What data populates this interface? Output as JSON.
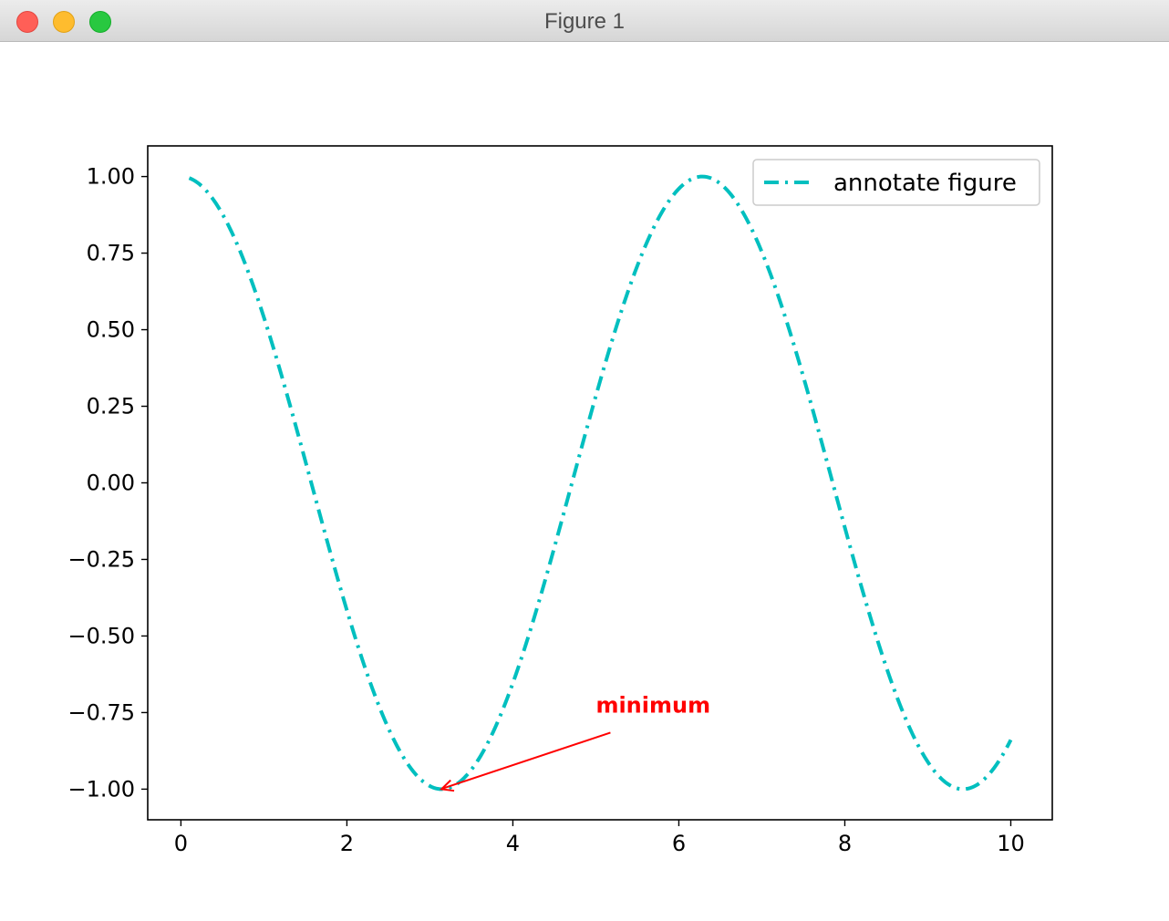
{
  "window": {
    "title": "Figure 1"
  },
  "chart_data": {
    "type": "line",
    "title": "",
    "xlabel": "",
    "ylabel": "",
    "xlim": [
      -0.4,
      10.5
    ],
    "ylim": [
      -1.1,
      1.1
    ],
    "xticks": [
      0,
      2,
      4,
      6,
      8,
      10
    ],
    "xtick_labels": [
      "0",
      "2",
      "4",
      "6",
      "8",
      "10"
    ],
    "yticks": [
      1.0,
      0.75,
      0.5,
      0.25,
      0.0,
      -0.25,
      -0.5,
      -0.75,
      -1.0
    ],
    "ytick_labels": [
      "1.00",
      "0.75",
      "0.50",
      "0.25",
      "0.00",
      "−0.25",
      "−0.50",
      "−0.75",
      "−1.00"
    ],
    "grid": false,
    "legend_position": "top-right",
    "series": [
      {
        "name": "annotate figure",
        "function": "cos(x)",
        "x_range": [
          0.1,
          10.0
        ],
        "color": "#00bfbf",
        "linestyle": "dashdot"
      }
    ],
    "annotations": [
      {
        "text": "minimum",
        "xy": [
          3.14,
          -1.0
        ],
        "xytext": [
          5.0,
          -0.75
        ],
        "color": "#ff0000",
        "fontweight": "bold"
      }
    ]
  }
}
